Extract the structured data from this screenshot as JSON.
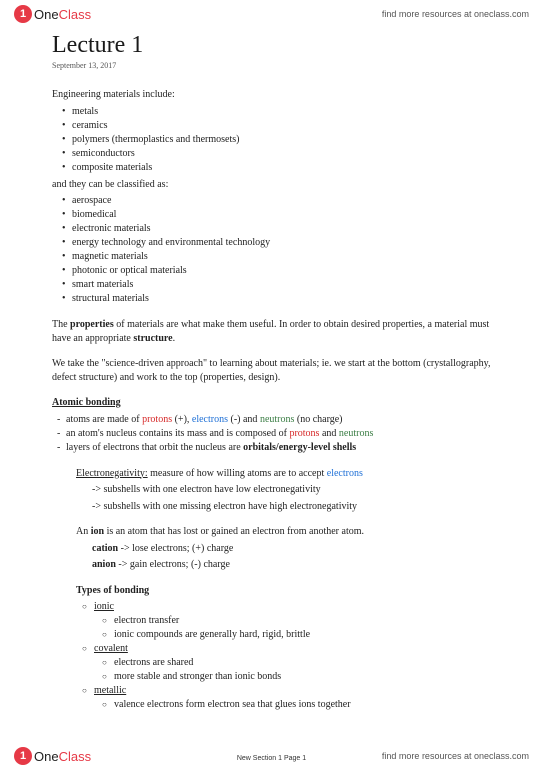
{
  "brand": {
    "circle": "1",
    "text_one": "One",
    "text_class": "Class",
    "tagline": "find more resources at oneclass.com"
  },
  "title": "Lecture 1",
  "date": "September 13, 2017",
  "intro1": "Engineering materials include:",
  "materials": [
    "metals",
    "ceramics",
    "polymers (thermoplastics and thermosets)",
    "semiconductors",
    "composite materials"
  ],
  "intro2": "and they can be classified as:",
  "classes": [
    "aerospace",
    "biomedical",
    "electronic materials",
    "energy technology and environmental technology",
    "magnetic materials",
    "photonic or optical materials",
    "smart materials",
    "structural materials"
  ],
  "p_props_a": "The ",
  "p_props_b": "properties",
  "p_props_c": " of materials are what make them useful. In order to obtain desired properties, a material must have an appropriate ",
  "p_props_d": "structure",
  "p_props_e": ".",
  "p_sci": "We take the \"science-driven approach\" to learning about materials; ie. we start at the bottom (crystallography, defect structure) and work to the top (properties, design).",
  "h_atomic": "Atomic bonding",
  "atom_a": "atoms are made of ",
  "atom_p": "protons",
  "atom_b": " (+), ",
  "atom_e": "electrons",
  "atom_c": " (-) and ",
  "atom_n": "neutrons",
  "atom_d": " (no charge)",
  "nuc_a": "an atom's nucleus contains its mass and is composed of ",
  "nuc_b": " and ",
  "layers_a": "layers of electrons that orbit the nucleus are ",
  "layers_b": "orbitals/energy-level shells",
  "en_a": "Electronegativity:",
  "en_b": " measure of how willing atoms are to accept ",
  "en_sub1": "-> subshells with one electron have low electronegativity",
  "en_sub2": "-> subshells with one missing electron have high electronegativity",
  "ion_a": "An ",
  "ion_b": "ion",
  "ion_c": " is an atom that has lost or gained an electron from another atom.",
  "cation_a": "cation",
  "cation_b": " -> lose electrons; (+) charge",
  "anion_a": "anion",
  "anion_b": " -> gain electrons; (-) charge",
  "h_types": "Types of bonding",
  "t_ionic": "ionic",
  "ionic_1": "electron transfer",
  "ionic_2": "ionic compounds are generally hard, rigid, brittle",
  "t_cov": "covalent",
  "cov_1": "electrons are shared",
  "cov_2": "more stable and stronger than ionic bonds",
  "t_met": "metallic",
  "met_1": "valence electrons form electron sea that glues ions together",
  "page_num": "New Section 1 Page 1",
  "colors": {
    "red": "#d62828",
    "blue": "#1d6fd6",
    "green": "#3a7d44",
    "brand_red": "#e63946"
  }
}
